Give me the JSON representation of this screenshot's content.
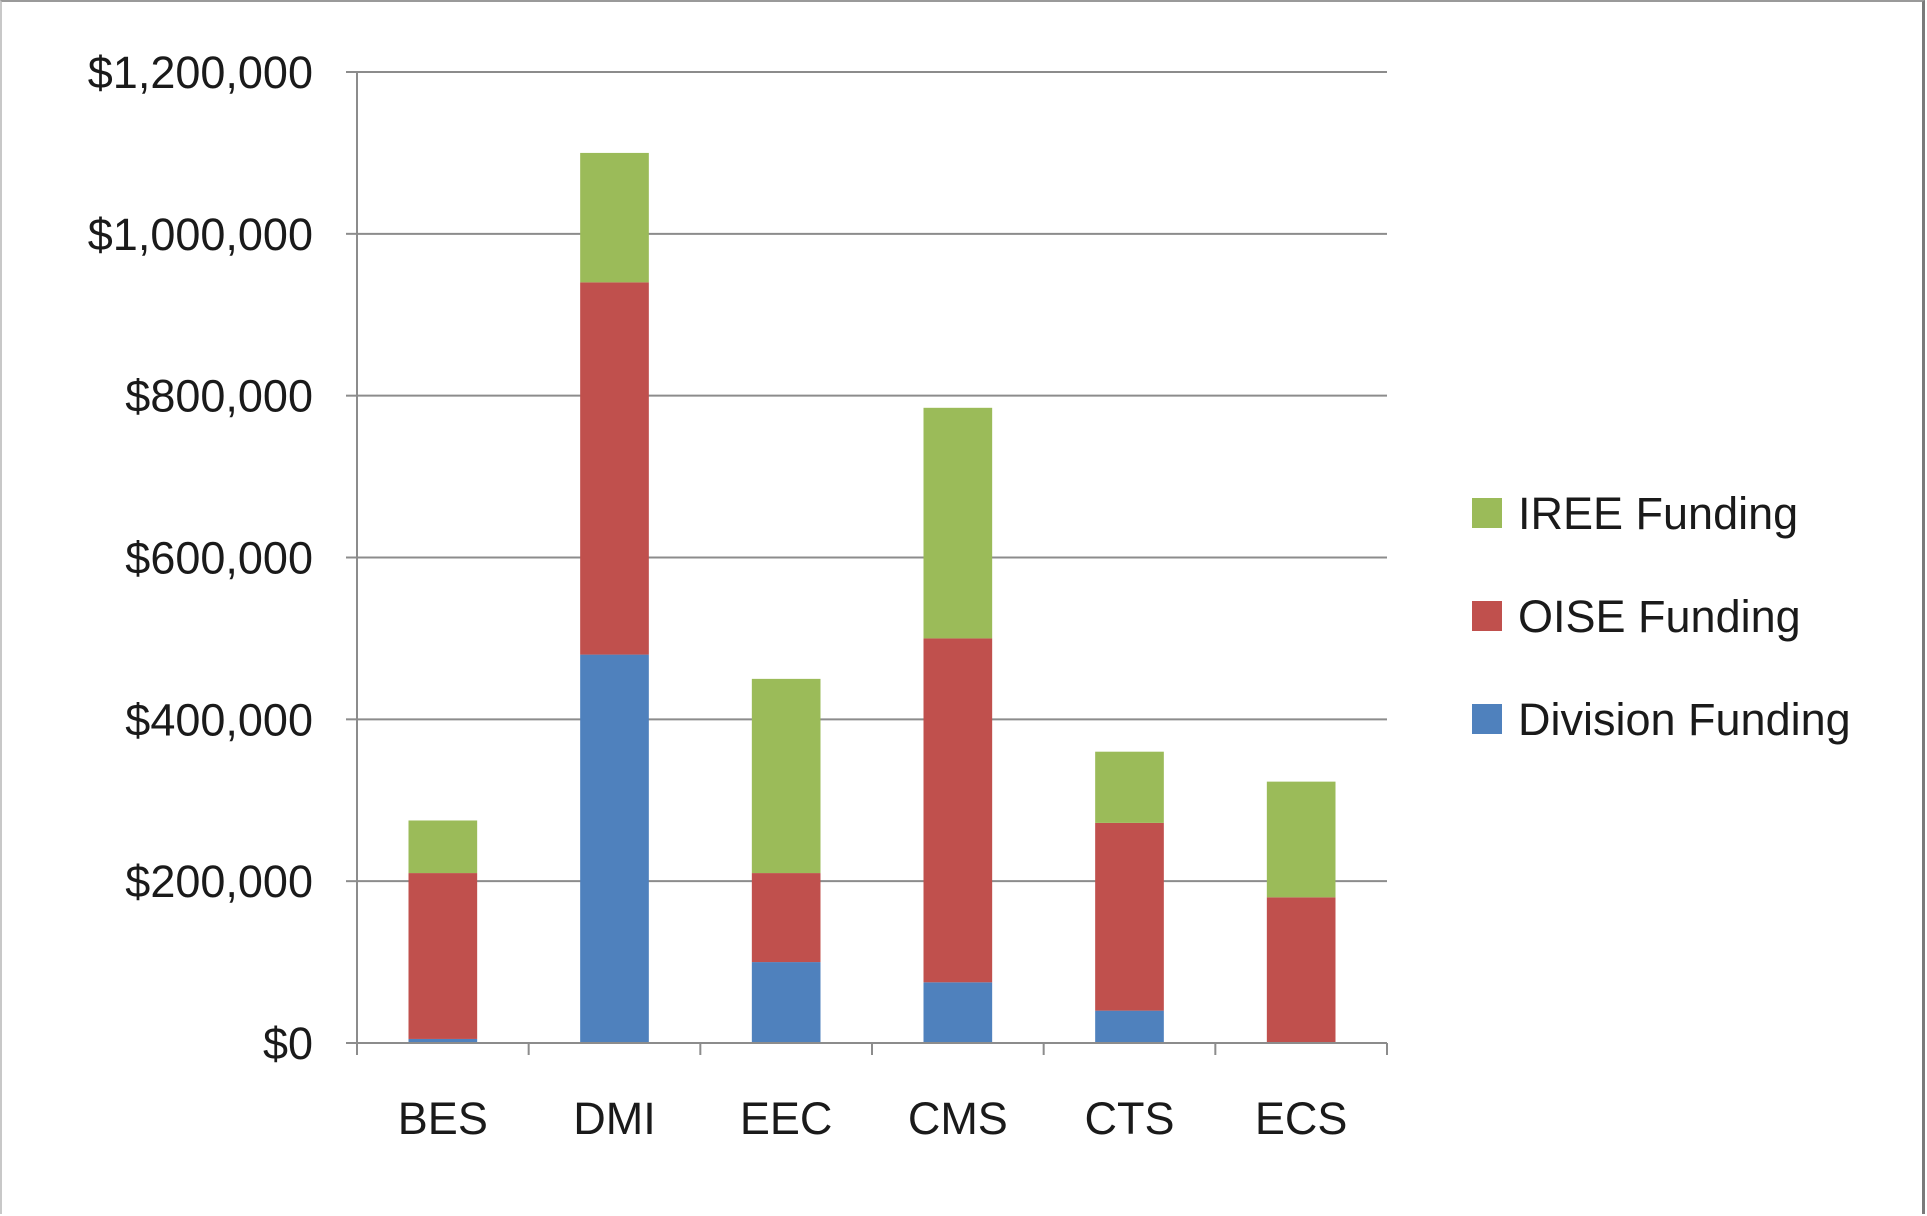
{
  "chart_data": {
    "type": "bar",
    "stacked": true,
    "categories": [
      "BES",
      "DMI",
      "EEC",
      "CMS",
      "CTS",
      "ECS"
    ],
    "series": [
      {
        "name": "Division Funding",
        "color": "#4f81bd",
        "values": [
          5000,
          480000,
          100000,
          75000,
          40000,
          0
        ]
      },
      {
        "name": "OISE Funding",
        "color": "#c0504d",
        "values": [
          205000,
          460000,
          110000,
          425000,
          232000,
          180000
        ]
      },
      {
        "name": "IREE Funding",
        "color": "#9bbb59",
        "values": [
          65000,
          160000,
          240000,
          285000,
          88000,
          143000
        ]
      }
    ],
    "ylim": [
      0,
      1200000
    ],
    "y_ticks": [
      0,
      200000,
      400000,
      600000,
      800000,
      1000000,
      1200000
    ],
    "y_tick_labels": [
      "$0",
      "$200,000",
      "$400,000",
      "$600,000",
      "$800,000",
      "$1,000,000",
      "$1,200,000"
    ],
    "grid": true,
    "legend_position": "right",
    "legend_order": [
      "IREE Funding",
      "OISE Funding",
      "Division Funding"
    ],
    "title": "",
    "xlabel": "",
    "ylabel": ""
  }
}
